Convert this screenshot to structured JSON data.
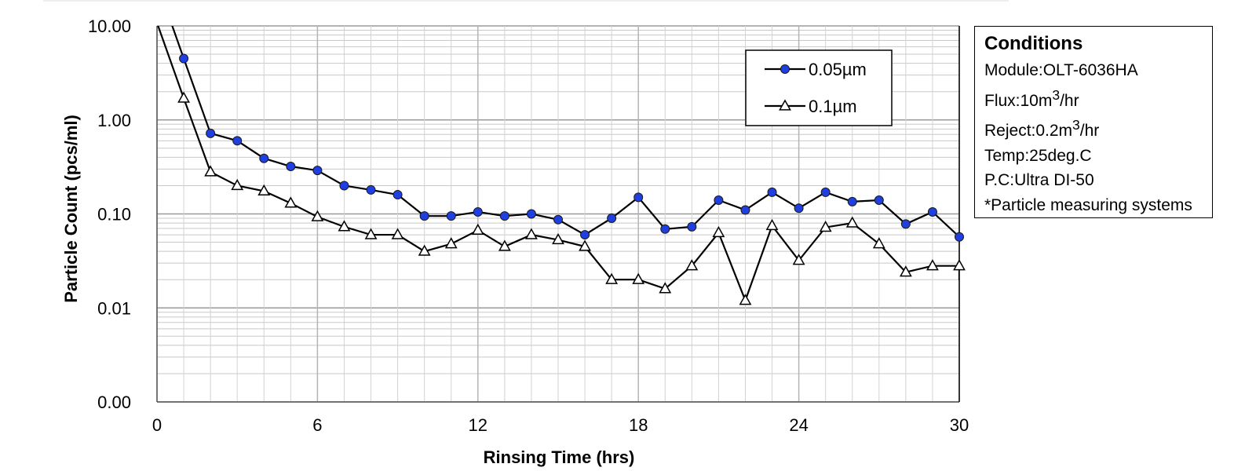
{
  "chart_data": {
    "type": "line",
    "xlabel": "Rinsing Time (hrs)",
    "ylabel": "Particle Count (pcs/ml)",
    "xlim": [
      0,
      30
    ],
    "xticks": [
      "0",
      "6",
      "12",
      "18",
      "24",
      "30"
    ],
    "yscale": "log",
    "yticks": [
      "0.00",
      "0.01",
      "0.10",
      "1.00",
      "10.00"
    ],
    "grid": true,
    "legend_position": "top-right",
    "series": [
      {
        "name": "0.05µm",
        "marker": "circle",
        "color": "#1f3fe0",
        "x": [
          1,
          2,
          3,
          4,
          5,
          6,
          7,
          8,
          9,
          10,
          11,
          12,
          13,
          14,
          15,
          16,
          17,
          18,
          19,
          20,
          21,
          22,
          23,
          24,
          25,
          26,
          27,
          28,
          29,
          30
        ],
        "y": [
          4.5,
          0.72,
          0.6,
          0.39,
          0.32,
          0.29,
          0.2,
          0.18,
          0.16,
          0.095,
          0.095,
          0.105,
          0.095,
          0.1,
          0.087,
          0.06,
          0.09,
          0.15,
          0.069,
          0.073,
          0.14,
          0.11,
          0.17,
          0.115,
          0.17,
          0.135,
          0.14,
          0.078,
          0.105,
          0.057
        ]
      },
      {
        "name": "0.1µm",
        "marker": "triangle",
        "color": "#ffffff",
        "x": [
          1,
          2,
          3,
          4,
          5,
          6,
          7,
          8,
          9,
          10,
          11,
          12,
          13,
          14,
          15,
          16,
          17,
          18,
          19,
          20,
          21,
          22,
          23,
          24,
          25,
          26,
          27,
          28,
          29,
          30
        ],
        "y": [
          1.7,
          0.28,
          0.2,
          0.175,
          0.13,
          0.093,
          0.073,
          0.06,
          0.06,
          0.04,
          0.048,
          0.067,
          0.045,
          0.06,
          0.053,
          0.045,
          0.02,
          0.02,
          0.016,
          0.028,
          0.063,
          0.012,
          0.075,
          0.032,
          0.072,
          0.08,
          0.048,
          0.024,
          0.028,
          0.028
        ]
      }
    ]
  },
  "conditions": {
    "title": "Conditions",
    "module": "Module:OLT-6036HA",
    "flux_prefix": "Flux:10m",
    "flux_sup": "3",
    "flux_suffix": "/hr",
    "reject_prefix": "Reject:0.2m",
    "reject_sup": "3",
    "reject_suffix": "/hr",
    "temp": "Temp:25deg.C",
    "pc": "P.C:Ultra DI-50",
    "note": "*Particle measuring systems"
  }
}
